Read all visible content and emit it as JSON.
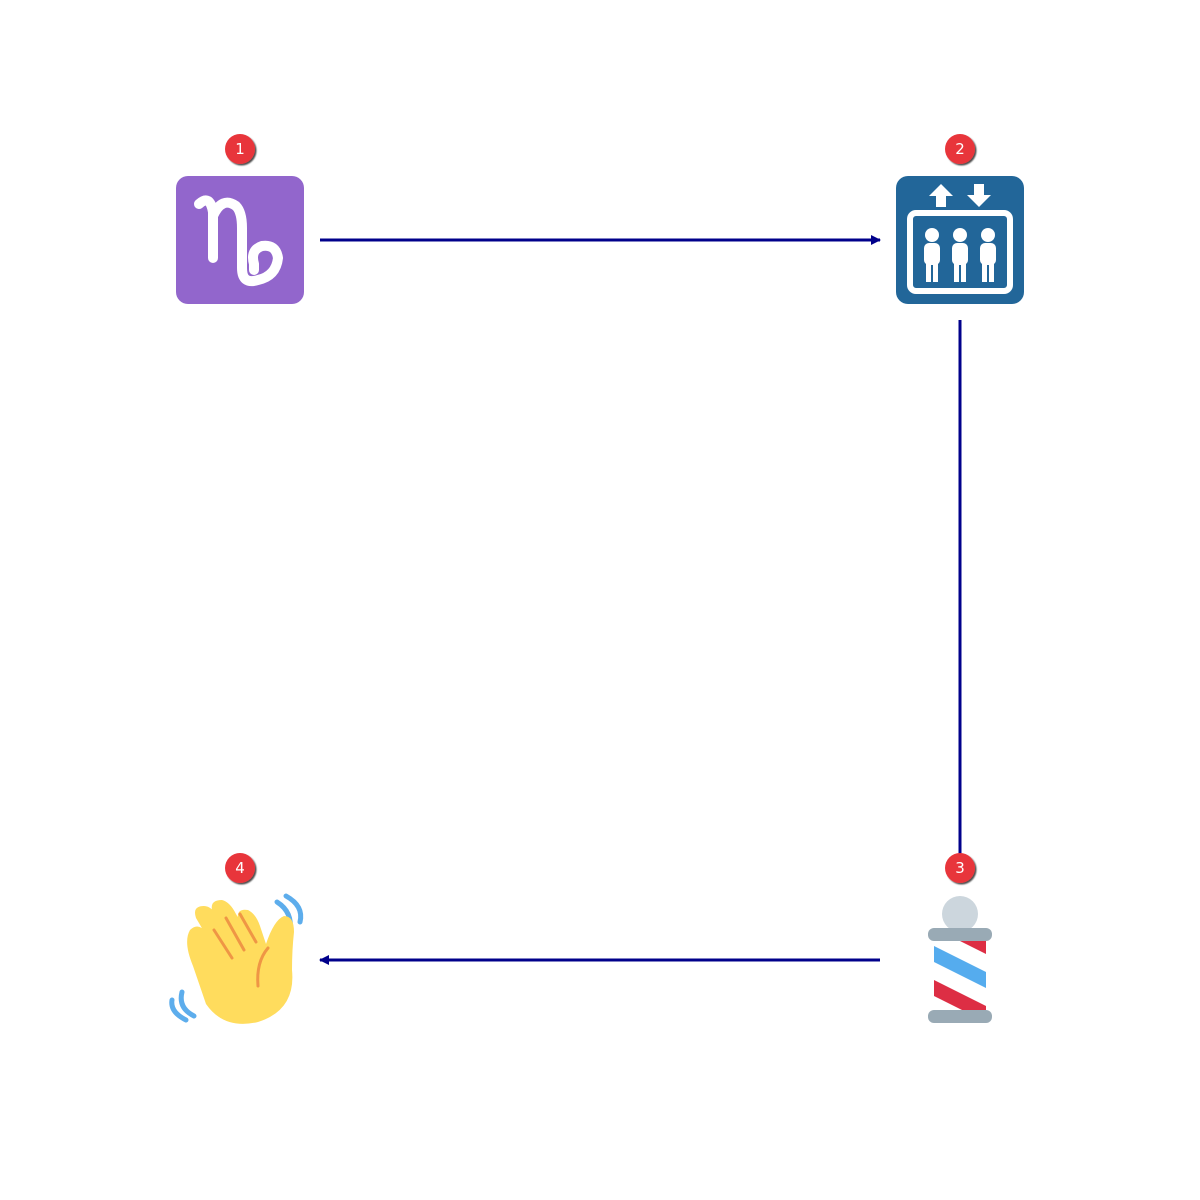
{
  "diagram": {
    "nodes": [
      {
        "id": "capricorn",
        "number": "1",
        "icon": "capricorn-icon",
        "color": "#9266CC"
      },
      {
        "id": "elevator",
        "number": "2",
        "icon": "elevator-icon",
        "color": "#226699"
      },
      {
        "id": "barber-pole",
        "number": "3",
        "icon": "barber-pole-icon",
        "color": "#DD2E44"
      },
      {
        "id": "waving-hand",
        "number": "4",
        "icon": "waving-hand-icon",
        "color": "#FFDC5D"
      }
    ],
    "edges": [
      {
        "from": "capricorn",
        "to": "elevator"
      },
      {
        "from": "elevator",
        "to": "barber-pole"
      },
      {
        "from": "barber-pole",
        "to": "waving-hand"
      }
    ],
    "colors": {
      "edge": "#00008B",
      "badge": "#E8363B",
      "badge_text": "#FFFFFF"
    }
  }
}
